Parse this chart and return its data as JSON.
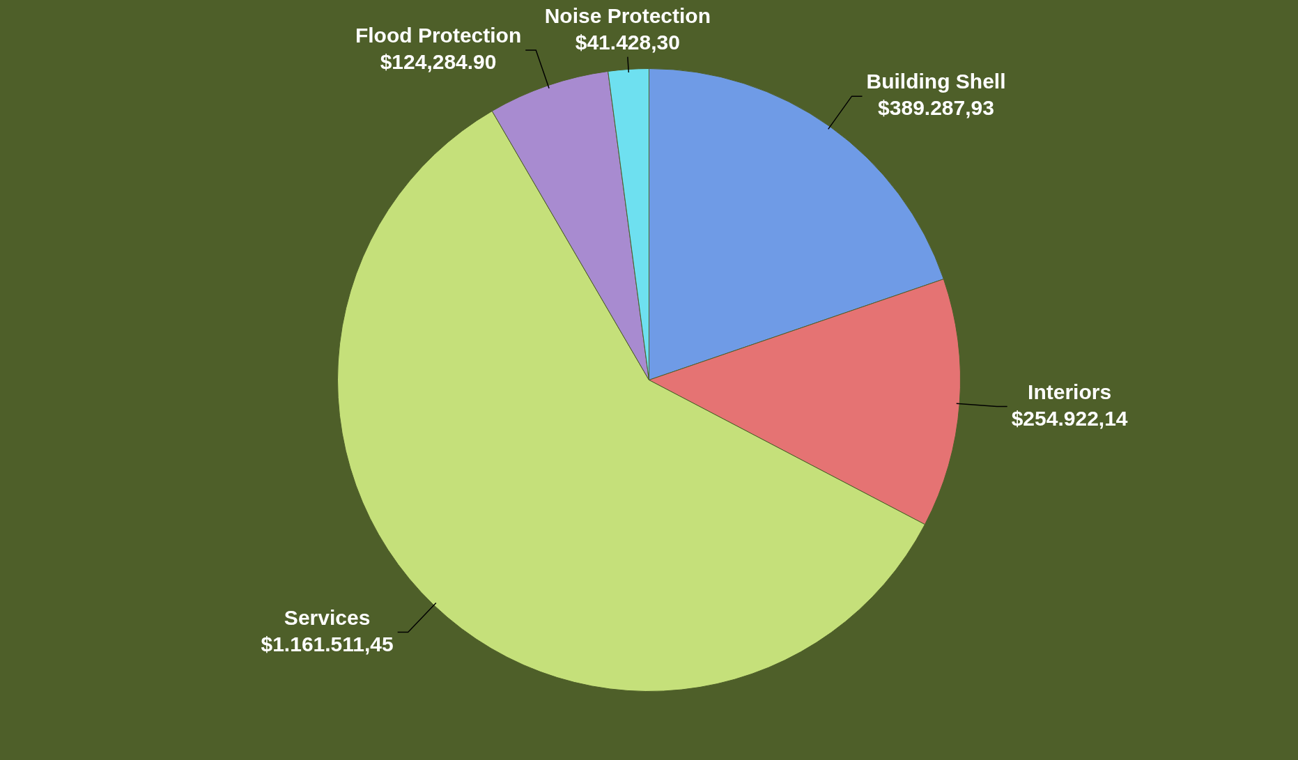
{
  "chart_data": {
    "type": "pie",
    "categories": [
      "Building Shell",
      "Interiors",
      "Services",
      "Flood Protection",
      "Noise Protection"
    ],
    "values": [
      389287.93,
      254922.14,
      1161511.45,
      124284.9,
      41428.3
    ],
    "value_labels": [
      "$389.287,93",
      "$254.922,14",
      "$1.161.511,45",
      "$124,284.90",
      "$41.428,30"
    ],
    "colors": [
      "#6f9be6",
      "#e57373",
      "#c5e07a",
      "#a88bd0",
      "#6ee0f0"
    ],
    "legend": false
  }
}
